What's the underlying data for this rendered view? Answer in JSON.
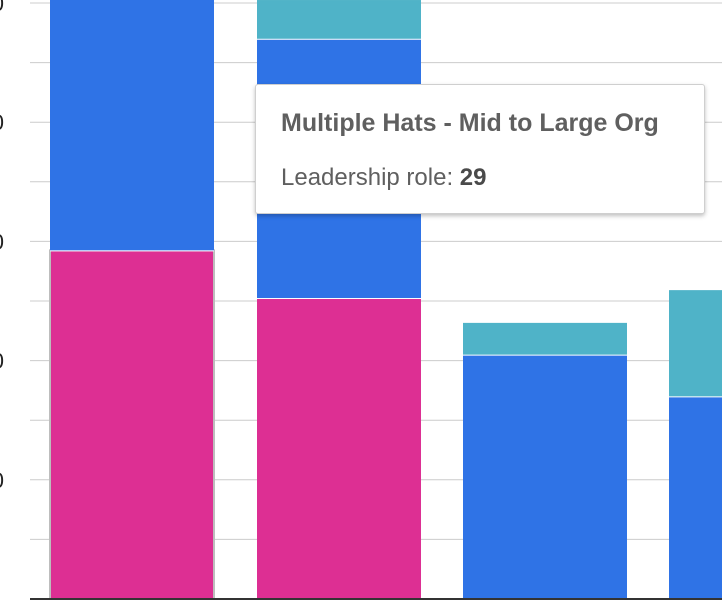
{
  "chart_data": {
    "type": "bar",
    "stacked": true,
    "ylim": [
      0,
      100
    ],
    "ytick_labels": [
      "0",
      "0",
      "0",
      "0",
      "0"
    ],
    "grid": true,
    "categories": [
      "",
      "",
      "",
      ""
    ],
    "series": [
      {
        "name": "Leadership role",
        "color": "#dd2f93",
        "values": [
          58.5,
          50.5,
          0,
          0
        ]
      },
      {
        "color": "#2f73e6",
        "values": [
          43,
          43.5,
          41,
          34
        ]
      },
      {
        "color": "#4fb3c8",
        "values": [
          0,
          6.5,
          5.5,
          18
        ]
      }
    ]
  },
  "tooltip": {
    "title": "Multiple Hats - Mid to Large Org",
    "label": "Leadership role: ",
    "value": "29"
  }
}
